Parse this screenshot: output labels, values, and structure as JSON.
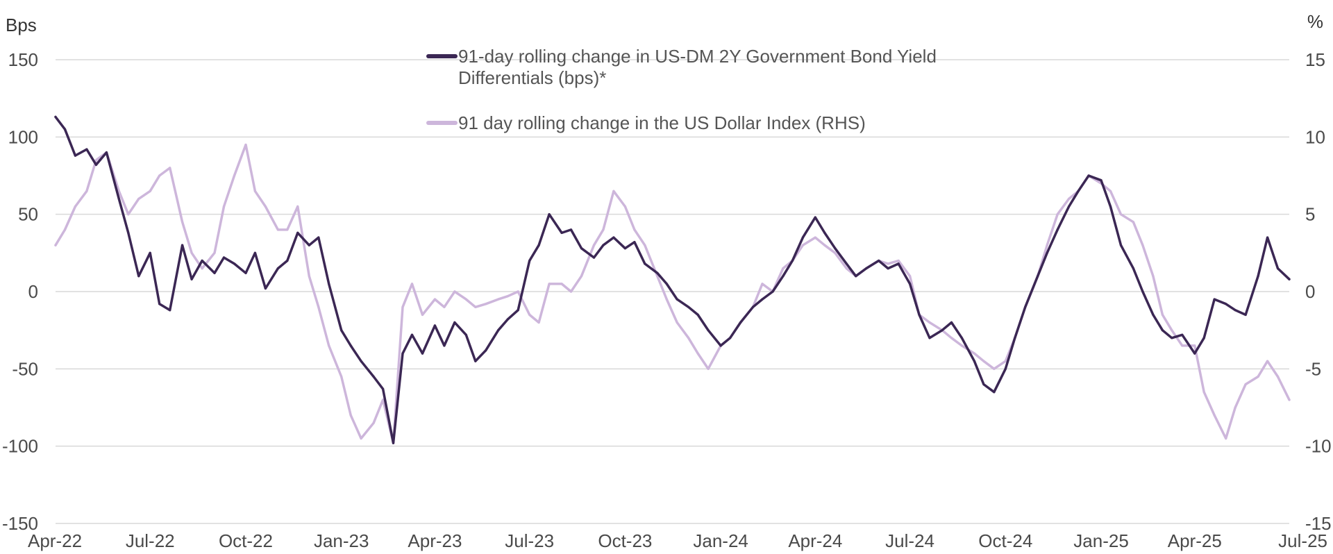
{
  "chart_data": {
    "type": "line",
    "left_axis": {
      "unit": "Bps",
      "ylim": [
        -150,
        150
      ],
      "ticks": [
        150,
        100,
        50,
        0,
        -50,
        -100,
        -150
      ],
      "tick_labels": [
        "150",
        "100",
        "50",
        "0",
        "-50",
        "-100",
        "-150"
      ]
    },
    "right_axis": {
      "unit": "%",
      "ylim": [
        -15,
        15
      ],
      "ticks": [
        15,
        10,
        5,
        0,
        -5,
        -10,
        -15
      ],
      "tick_labels": [
        "15",
        "10",
        "5",
        "0",
        "-5",
        "-10",
        "-15"
      ]
    },
    "x_axis": {
      "range": [
        "2022-04-01",
        "2025-07-01"
      ],
      "ticks": [
        "2022-04-01",
        "2022-07-01",
        "2022-10-01",
        "2023-01-01",
        "2023-04-01",
        "2023-07-01",
        "2023-10-01",
        "2024-01-01",
        "2024-04-01",
        "2024-07-01",
        "2024-10-01",
        "2025-01-01",
        "2025-04-01",
        "2025-07-01"
      ],
      "tick_labels": [
        "Apr-22",
        "Jul-22",
        "Oct-22",
        "Jan-23",
        "Apr-23",
        "Jul-23",
        "Oct-23",
        "Jan-24",
        "Apr-24",
        "Jul-24",
        "Oct-24",
        "Jan-25",
        "Apr-25",
        "Jul-25"
      ]
    },
    "grid": true,
    "legend_position": "top-center",
    "series": [
      {
        "name": "91-day rolling change in US-DM 2Y Government Bond Yield Differentials (bps)*",
        "legend_lines": [
          "91-day rolling change in US-DM 2Y Government Bond Yield",
          "Differentials (bps)*"
        ],
        "axis": "left",
        "color": "#3b2754",
        "points": [
          [
            "2022-04-01",
            113
          ],
          [
            "2022-04-10",
            105
          ],
          [
            "2022-04-20",
            88
          ],
          [
            "2022-05-01",
            92
          ],
          [
            "2022-05-10",
            82
          ],
          [
            "2022-05-20",
            90
          ],
          [
            "2022-06-01",
            60
          ],
          [
            "2022-06-10",
            38
          ],
          [
            "2022-06-20",
            10
          ],
          [
            "2022-07-01",
            25
          ],
          [
            "2022-07-10",
            -8
          ],
          [
            "2022-07-20",
            -12
          ],
          [
            "2022-08-01",
            30
          ],
          [
            "2022-08-10",
            8
          ],
          [
            "2022-08-20",
            20
          ],
          [
            "2022-09-01",
            12
          ],
          [
            "2022-09-10",
            22
          ],
          [
            "2022-09-20",
            18
          ],
          [
            "2022-10-01",
            12
          ],
          [
            "2022-10-10",
            25
          ],
          [
            "2022-10-20",
            2
          ],
          [
            "2022-11-01",
            15
          ],
          [
            "2022-11-10",
            20
          ],
          [
            "2022-11-20",
            38
          ],
          [
            "2022-12-01",
            30
          ],
          [
            "2022-12-10",
            35
          ],
          [
            "2022-12-20",
            5
          ],
          [
            "2023-01-01",
            -25
          ],
          [
            "2023-01-10",
            -35
          ],
          [
            "2023-01-20",
            -45
          ],
          [
            "2023-02-01",
            -55
          ],
          [
            "2023-02-10",
            -63
          ],
          [
            "2023-02-20",
            -98
          ],
          [
            "2023-03-01",
            -40
          ],
          [
            "2023-03-10",
            -28
          ],
          [
            "2023-03-20",
            -40
          ],
          [
            "2023-04-01",
            -22
          ],
          [
            "2023-04-10",
            -35
          ],
          [
            "2023-04-20",
            -20
          ],
          [
            "2023-05-01",
            -28
          ],
          [
            "2023-05-10",
            -45
          ],
          [
            "2023-05-20",
            -38
          ],
          [
            "2023-06-01",
            -25
          ],
          [
            "2023-06-10",
            -18
          ],
          [
            "2023-06-20",
            -12
          ],
          [
            "2023-07-01",
            20
          ],
          [
            "2023-07-10",
            30
          ],
          [
            "2023-07-20",
            50
          ],
          [
            "2023-08-01",
            38
          ],
          [
            "2023-08-10",
            40
          ],
          [
            "2023-08-20",
            28
          ],
          [
            "2023-09-01",
            22
          ],
          [
            "2023-09-10",
            30
          ],
          [
            "2023-09-20",
            35
          ],
          [
            "2023-10-01",
            28
          ],
          [
            "2023-10-10",
            32
          ],
          [
            "2023-10-20",
            18
          ],
          [
            "2023-11-01",
            12
          ],
          [
            "2023-11-10",
            5
          ],
          [
            "2023-11-20",
            -5
          ],
          [
            "2023-12-01",
            -10
          ],
          [
            "2023-12-10",
            -15
          ],
          [
            "2023-12-20",
            -25
          ],
          [
            "2024-01-01",
            -35
          ],
          [
            "2024-01-10",
            -30
          ],
          [
            "2024-01-20",
            -20
          ],
          [
            "2024-02-01",
            -10
          ],
          [
            "2024-02-10",
            -5
          ],
          [
            "2024-02-20",
            0
          ],
          [
            "2024-03-01",
            10
          ],
          [
            "2024-03-10",
            20
          ],
          [
            "2024-03-20",
            35
          ],
          [
            "2024-04-01",
            48
          ],
          [
            "2024-04-10",
            38
          ],
          [
            "2024-04-20",
            28
          ],
          [
            "2024-05-01",
            18
          ],
          [
            "2024-05-10",
            10
          ],
          [
            "2024-05-20",
            15
          ],
          [
            "2024-06-01",
            20
          ],
          [
            "2024-06-10",
            15
          ],
          [
            "2024-06-20",
            18
          ],
          [
            "2024-07-01",
            5
          ],
          [
            "2024-07-10",
            -15
          ],
          [
            "2024-07-20",
            -30
          ],
          [
            "2024-08-01",
            -25
          ],
          [
            "2024-08-10",
            -20
          ],
          [
            "2024-08-20",
            -30
          ],
          [
            "2024-09-01",
            -45
          ],
          [
            "2024-09-10",
            -60
          ],
          [
            "2024-09-20",
            -65
          ],
          [
            "2024-10-01",
            -50
          ],
          [
            "2024-10-10",
            -30
          ],
          [
            "2024-10-20",
            -10
          ],
          [
            "2024-11-01",
            10
          ],
          [
            "2024-11-10",
            25
          ],
          [
            "2024-11-20",
            40
          ],
          [
            "2024-12-01",
            55
          ],
          [
            "2024-12-10",
            65
          ],
          [
            "2024-12-20",
            75
          ],
          [
            "2025-01-01",
            72
          ],
          [
            "2025-01-10",
            55
          ],
          [
            "2025-01-20",
            30
          ],
          [
            "2025-02-01",
            15
          ],
          [
            "2025-02-10",
            0
          ],
          [
            "2025-02-20",
            -15
          ],
          [
            "2025-03-01",
            -25
          ],
          [
            "2025-03-10",
            -30
          ],
          [
            "2025-03-20",
            -28
          ],
          [
            "2025-04-01",
            -40
          ],
          [
            "2025-04-10",
            -30
          ],
          [
            "2025-04-20",
            -5
          ],
          [
            "2025-05-01",
            -8
          ],
          [
            "2025-05-10",
            -12
          ],
          [
            "2025-05-20",
            -15
          ],
          [
            "2025-06-01",
            10
          ],
          [
            "2025-06-10",
            35
          ],
          [
            "2025-06-20",
            15
          ],
          [
            "2025-07-01",
            8
          ]
        ]
      },
      {
        "name": "91 day rolling change in the US Dollar Index (RHS)",
        "legend_lines": [
          "91 day rolling change in the US Dollar Index (RHS)"
        ],
        "axis": "right",
        "color": "#cdb6db",
        "points": [
          [
            "2022-04-01",
            3.0
          ],
          [
            "2022-04-10",
            4.0
          ],
          [
            "2022-04-20",
            5.5
          ],
          [
            "2022-05-01",
            6.5
          ],
          [
            "2022-05-10",
            8.5
          ],
          [
            "2022-05-20",
            9.0
          ],
          [
            "2022-06-01",
            6.5
          ],
          [
            "2022-06-10",
            5.0
          ],
          [
            "2022-06-20",
            6.0
          ],
          [
            "2022-07-01",
            6.5
          ],
          [
            "2022-07-10",
            7.5
          ],
          [
            "2022-07-20",
            8.0
          ],
          [
            "2022-08-01",
            4.5
          ],
          [
            "2022-08-10",
            2.5
          ],
          [
            "2022-08-20",
            1.5
          ],
          [
            "2022-09-01",
            2.5
          ],
          [
            "2022-09-10",
            5.5
          ],
          [
            "2022-09-20",
            7.5
          ],
          [
            "2022-10-01",
            9.5
          ],
          [
            "2022-10-10",
            6.5
          ],
          [
            "2022-10-20",
            5.5
          ],
          [
            "2022-11-01",
            4.0
          ],
          [
            "2022-11-10",
            4.0
          ],
          [
            "2022-11-20",
            5.5
          ],
          [
            "2022-12-01",
            1.0
          ],
          [
            "2022-12-10",
            -1.0
          ],
          [
            "2022-12-20",
            -3.5
          ],
          [
            "2023-01-01",
            -5.5
          ],
          [
            "2023-01-10",
            -8.0
          ],
          [
            "2023-01-20",
            -9.5
          ],
          [
            "2023-02-01",
            -8.5
          ],
          [
            "2023-02-10",
            -7.0
          ],
          [
            "2023-02-20",
            -9.8
          ],
          [
            "2023-03-01",
            -1.0
          ],
          [
            "2023-03-10",
            0.5
          ],
          [
            "2023-03-20",
            -1.5
          ],
          [
            "2023-04-01",
            -0.5
          ],
          [
            "2023-04-10",
            -1.0
          ],
          [
            "2023-04-20",
            0.0
          ],
          [
            "2023-05-01",
            -0.5
          ],
          [
            "2023-05-10",
            -1.0
          ],
          [
            "2023-05-20",
            -0.8
          ],
          [
            "2023-06-01",
            -0.5
          ],
          [
            "2023-06-10",
            -0.3
          ],
          [
            "2023-06-20",
            0.0
          ],
          [
            "2023-07-01",
            -1.5
          ],
          [
            "2023-07-10",
            -2.0
          ],
          [
            "2023-07-20",
            0.5
          ],
          [
            "2023-08-01",
            0.5
          ],
          [
            "2023-08-10",
            0.0
          ],
          [
            "2023-08-20",
            1.0
          ],
          [
            "2023-09-01",
            3.0
          ],
          [
            "2023-09-10",
            4.0
          ],
          [
            "2023-09-20",
            6.5
          ],
          [
            "2023-10-01",
            5.5
          ],
          [
            "2023-10-10",
            4.0
          ],
          [
            "2023-10-20",
            3.0
          ],
          [
            "2023-11-01",
            1.0
          ],
          [
            "2023-11-10",
            -0.5
          ],
          [
            "2023-11-20",
            -2.0
          ],
          [
            "2023-12-01",
            -3.0
          ],
          [
            "2023-12-10",
            -4.0
          ],
          [
            "2023-12-20",
            -5.0
          ],
          [
            "2024-01-01",
            -3.5
          ],
          [
            "2024-01-10",
            -3.0
          ],
          [
            "2024-01-20",
            -2.0
          ],
          [
            "2024-02-01",
            -1.0
          ],
          [
            "2024-02-10",
            0.5
          ],
          [
            "2024-02-20",
            0.0
          ],
          [
            "2024-03-01",
            1.5
          ],
          [
            "2024-03-10",
            2.0
          ],
          [
            "2024-03-20",
            3.0
          ],
          [
            "2024-04-01",
            3.5
          ],
          [
            "2024-04-10",
            3.0
          ],
          [
            "2024-04-20",
            2.5
          ],
          [
            "2024-05-01",
            1.5
          ],
          [
            "2024-05-10",
            1.0
          ],
          [
            "2024-05-20",
            1.5
          ],
          [
            "2024-06-01",
            2.0
          ],
          [
            "2024-06-10",
            1.8
          ],
          [
            "2024-06-20",
            2.0
          ],
          [
            "2024-07-01",
            1.0
          ],
          [
            "2024-07-10",
            -1.5
          ],
          [
            "2024-07-20",
            -2.0
          ],
          [
            "2024-08-01",
            -2.5
          ],
          [
            "2024-08-10",
            -3.0
          ],
          [
            "2024-08-20",
            -3.5
          ],
          [
            "2024-09-01",
            -4.0
          ],
          [
            "2024-09-10",
            -4.5
          ],
          [
            "2024-09-20",
            -5.0
          ],
          [
            "2024-10-01",
            -4.5
          ],
          [
            "2024-10-10",
            -3.0
          ],
          [
            "2024-10-20",
            -1.0
          ],
          [
            "2024-11-01",
            1.0
          ],
          [
            "2024-11-10",
            3.0
          ],
          [
            "2024-11-20",
            5.0
          ],
          [
            "2024-12-01",
            6.0
          ],
          [
            "2024-12-10",
            6.5
          ],
          [
            "2024-12-20",
            7.5
          ],
          [
            "2025-01-01",
            7.0
          ],
          [
            "2025-01-10",
            6.5
          ],
          [
            "2025-01-20",
            5.0
          ],
          [
            "2025-02-01",
            4.5
          ],
          [
            "2025-02-10",
            3.0
          ],
          [
            "2025-02-20",
            1.0
          ],
          [
            "2025-03-01",
            -1.5
          ],
          [
            "2025-03-10",
            -2.5
          ],
          [
            "2025-03-20",
            -3.5
          ],
          [
            "2025-04-01",
            -3.5
          ],
          [
            "2025-04-10",
            -6.5
          ],
          [
            "2025-04-20",
            -8.0
          ],
          [
            "2025-05-01",
            -9.5
          ],
          [
            "2025-05-10",
            -7.5
          ],
          [
            "2025-05-20",
            -6.0
          ],
          [
            "2025-06-01",
            -5.5
          ],
          [
            "2025-06-10",
            -4.5
          ],
          [
            "2025-06-20",
            -5.5
          ],
          [
            "2025-07-01",
            -7.0
          ]
        ]
      }
    ]
  }
}
